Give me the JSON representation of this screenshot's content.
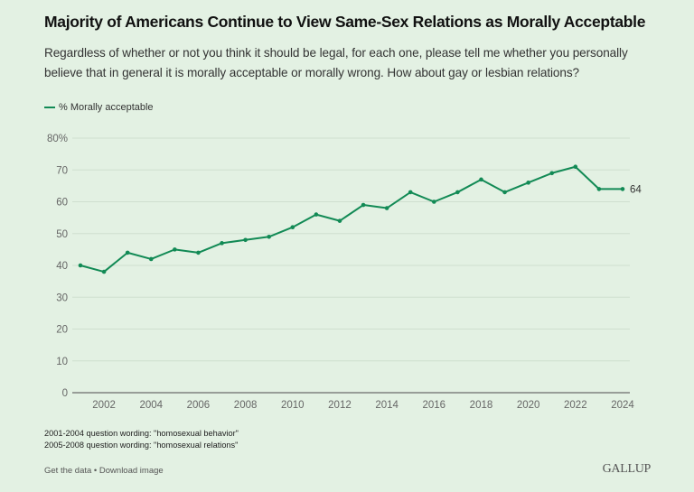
{
  "header": {
    "title": "Majority of Americans Continue to View Same-Sex Relations as Morally Acceptable",
    "subtitle": "Regardless of whether or not you think it should be legal, for each one, please tell me whether you personally believe that in general it is morally acceptable or morally wrong. How about gay or lesbian relations?"
  },
  "legend": {
    "label": "% Morally acceptable"
  },
  "colors": {
    "line": "#128a55",
    "background": "#e3f1e3",
    "grid": "#cfdfcf",
    "axis": "#6b6b6b"
  },
  "chart_data": {
    "type": "line",
    "title": "Majority of Americans Continue to View Same-Sex Relations as Morally Acceptable",
    "xlabel": "",
    "ylabel": "",
    "x": [
      2001,
      2002,
      2003,
      2004,
      2005,
      2006,
      2007,
      2008,
      2009,
      2010,
      2011,
      2012,
      2013,
      2014,
      2015,
      2016,
      2017,
      2018,
      2019,
      2020,
      2021,
      2022,
      2023,
      2024
    ],
    "series": [
      {
        "name": "% Morally acceptable",
        "values": [
          40,
          38,
          44,
          42,
          45,
          44,
          47,
          48,
          49,
          52,
          56,
          54,
          59,
          58,
          63,
          60,
          63,
          67,
          63,
          66,
          69,
          71,
          64,
          64
        ]
      }
    ],
    "xlim": [
      2001,
      2024
    ],
    "ylim": [
      0,
      80
    ],
    "x_ticks": [
      "2002",
      "2004",
      "2006",
      "2008",
      "2010",
      "2012",
      "2014",
      "2016",
      "2018",
      "2020",
      "2022",
      "2024"
    ],
    "y_ticks": [
      "0",
      "10",
      "20",
      "30",
      "40",
      "50",
      "60",
      "70",
      "80%"
    ],
    "y_tick_values": [
      0,
      10,
      20,
      30,
      40,
      50,
      60,
      70,
      80
    ],
    "end_label": "64",
    "grid": true,
    "legend_position": "top-left"
  },
  "notes": [
    "2001-2004 question wording: \"homosexual behavior\"",
    "2005-2008 question wording: \"homosexual relations\""
  ],
  "footer": {
    "get_data": "Get the data",
    "separator": " • ",
    "download": "Download image",
    "brand": "GALLUP"
  }
}
